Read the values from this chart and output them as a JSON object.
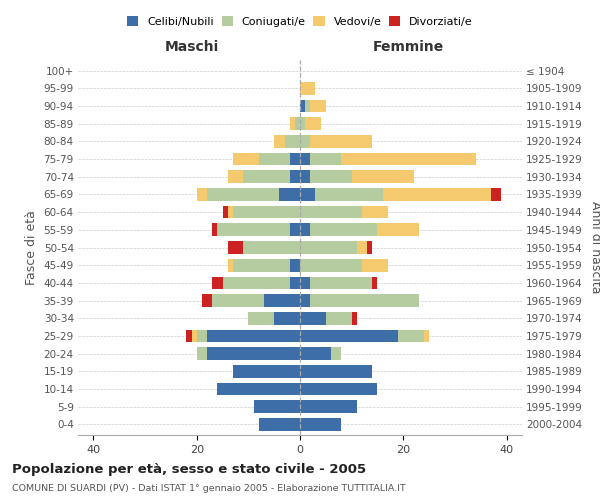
{
  "age_groups": [
    "0-4",
    "5-9",
    "10-14",
    "15-19",
    "20-24",
    "25-29",
    "30-34",
    "35-39",
    "40-44",
    "45-49",
    "50-54",
    "55-59",
    "60-64",
    "65-69",
    "70-74",
    "75-79",
    "80-84",
    "85-89",
    "90-94",
    "95-99",
    "100+"
  ],
  "birth_years": [
    "2000-2004",
    "1995-1999",
    "1990-1994",
    "1985-1989",
    "1980-1984",
    "1975-1979",
    "1970-1974",
    "1965-1969",
    "1960-1964",
    "1955-1959",
    "1950-1954",
    "1945-1949",
    "1940-1944",
    "1935-1939",
    "1930-1934",
    "1925-1929",
    "1920-1924",
    "1915-1919",
    "1910-1914",
    "1905-1909",
    "≤ 1904"
  ],
  "maschi": {
    "celibi": [
      8,
      9,
      16,
      13,
      18,
      18,
      5,
      7,
      2,
      2,
      0,
      2,
      0,
      4,
      2,
      2,
      0,
      0,
      0,
      0,
      0
    ],
    "coniugati": [
      0,
      0,
      0,
      0,
      2,
      2,
      5,
      10,
      13,
      11,
      11,
      14,
      13,
      14,
      9,
      6,
      3,
      1,
      0,
      0,
      0
    ],
    "vedovi": [
      0,
      0,
      0,
      0,
      0,
      1,
      0,
      0,
      0,
      1,
      0,
      0,
      1,
      2,
      3,
      5,
      2,
      1,
      0,
      0,
      0
    ],
    "divorziati": [
      0,
      0,
      0,
      0,
      0,
      1,
      0,
      2,
      2,
      0,
      3,
      1,
      1,
      0,
      0,
      0,
      0,
      0,
      0,
      0,
      0
    ]
  },
  "femmine": {
    "nubili": [
      8,
      11,
      15,
      14,
      6,
      19,
      5,
      2,
      2,
      0,
      0,
      2,
      0,
      3,
      2,
      2,
      0,
      0,
      1,
      0,
      0
    ],
    "coniugate": [
      0,
      0,
      0,
      0,
      2,
      5,
      5,
      21,
      12,
      12,
      11,
      13,
      12,
      13,
      8,
      6,
      2,
      1,
      1,
      0,
      0
    ],
    "vedove": [
      0,
      0,
      0,
      0,
      0,
      1,
      0,
      0,
      0,
      5,
      2,
      8,
      5,
      21,
      12,
      26,
      12,
      3,
      3,
      3,
      0
    ],
    "divorziate": [
      0,
      0,
      0,
      0,
      0,
      0,
      1,
      0,
      1,
      0,
      1,
      0,
      0,
      2,
      0,
      0,
      0,
      0,
      0,
      0,
      0
    ]
  },
  "colors": {
    "celibi_nubili": "#3d6ea8",
    "coniugati": "#b5cca0",
    "vedovi": "#f5c96e",
    "divorziati": "#cc2222"
  },
  "xlim": 43,
  "title": "Popolazione per età, sesso e stato civile - 2005",
  "subtitle": "COMUNE DI SUARDI (PV) - Dati ISTAT 1° gennaio 2005 - Elaborazione TUTTITALIA.IT",
  "ylabel_left": "Fasce di età",
  "ylabel_right": "Anni di nascita",
  "xlabel_left": "Maschi",
  "xlabel_right": "Femmine"
}
